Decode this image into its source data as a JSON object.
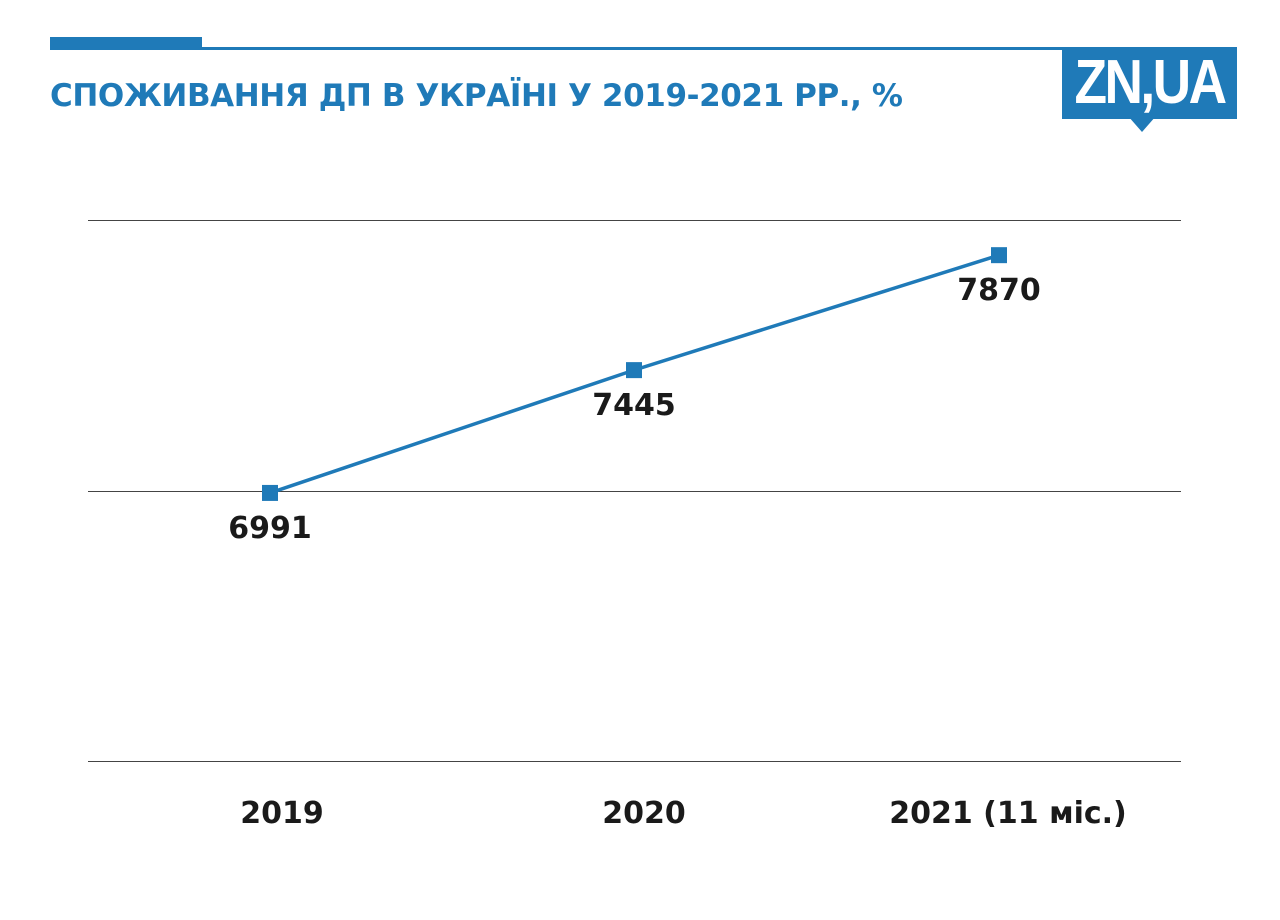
{
  "header": {
    "title": "СПОЖИВАННЯ ДП В УКРАЇНІ У 2019-2021 РР., %",
    "accent_color": "#1f7ab8"
  },
  "logo": {
    "text": "ZN,UA"
  },
  "chart_data": {
    "type": "line",
    "title": "СПОЖИВАННЯ ДП В УКРАЇНІ У 2019-2021 РР., %",
    "categories": [
      "2019",
      "2020",
      "2021 (11 міс.)"
    ],
    "series": [
      {
        "values": [
          6991,
          7445,
          7870
        ],
        "color": "#1f7ab8",
        "marker": "square"
      }
    ],
    "data_labels": [
      "6991",
      "7445",
      "7870"
    ],
    "xlabel": "",
    "ylabel": "",
    "ylim": [
      6000,
      8000
    ],
    "grid": true,
    "gridlines_y": [
      6000,
      7000,
      8000
    ],
    "legend": "none"
  }
}
